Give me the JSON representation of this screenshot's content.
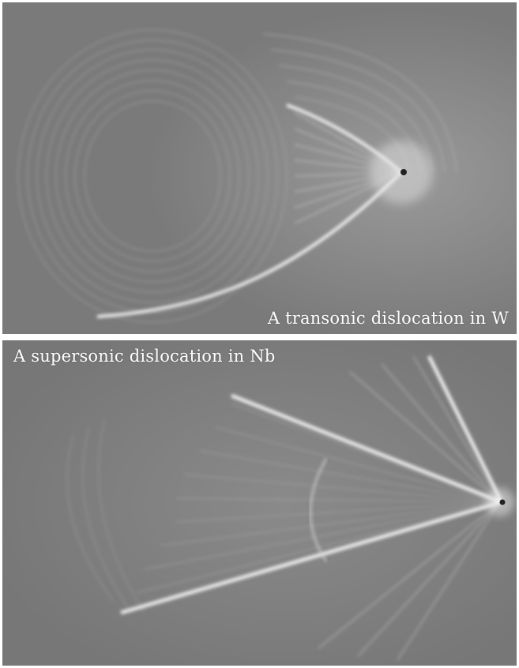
{
  "panels": [
    {
      "caption": "A transonic dislocation in W",
      "background": "#7d7d7d",
      "highlight": "#f4f4f4"
    },
    {
      "caption": "A supersonic dislocation in Nb",
      "background": "#7d7d7d",
      "highlight": "#f4f4f4"
    }
  ]
}
